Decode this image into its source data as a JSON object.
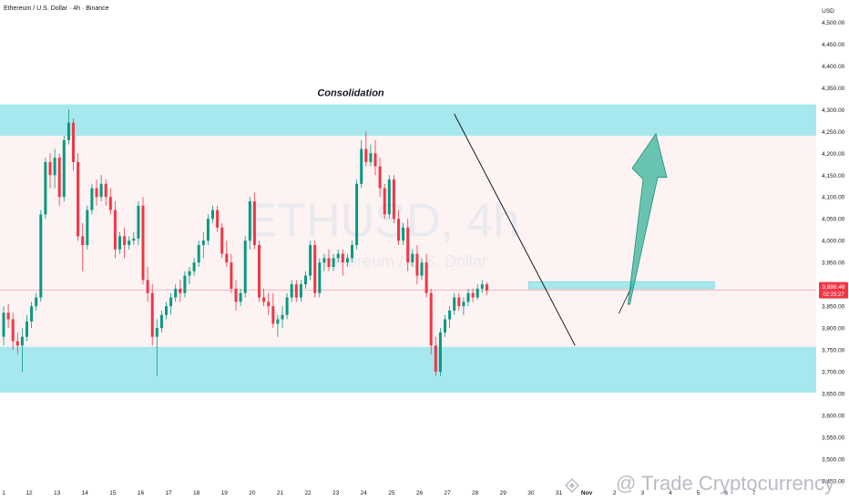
{
  "header": {
    "title": "Ethereum / U.S. Dollar · 4h · Binance"
  },
  "watermark": {
    "text": "@ Trade Cryptocurrency"
  },
  "colors": {
    "up": "#089981",
    "down": "#f23645",
    "zone": "#a7e8ee",
    "zone_edge": "#7fd6e0",
    "band": "#fdf3f3",
    "arrow": "#36b39a",
    "price_tag": "#f23645"
  },
  "chart_data": {
    "type": "candlestick",
    "symbol_watermark": "ETHUSD, 4h",
    "symbol_watermark_sub": "Ethereum / U.S. Dollar",
    "yunit": "USD",
    "ylim": [
      3450,
      4530
    ],
    "y_ticks": [
      4500,
      4450,
      4400,
      4350,
      4300,
      4250,
      4200,
      4150,
      4100,
      4050,
      4000,
      3950,
      3900,
      3850,
      3800,
      3750,
      3700,
      3650,
      3600,
      3550,
      3500,
      3450
    ],
    "y_tick_labels": [
      "4,500.00",
      "4,450.00",
      "4,400.00",
      "4,350.00",
      "4,300.00",
      "4,250.00",
      "4,200.00",
      "4,150.00",
      "4,100.00",
      "4,050.00",
      "4,000.00",
      "3,950.00",
      "3,900.00",
      "3,850.00",
      "3,800.00",
      "3,750.00",
      "3,700.00",
      "3,650.00",
      "3,600.00",
      "3,550.00",
      "3,500.00",
      "3,450.00"
    ],
    "current_price": {
      "label": "3,886.46",
      "countdown": "02:25:27",
      "value": 3886.46
    },
    "x_labels": [
      "1",
      "12",
      "13",
      "14",
      "15",
      "16",
      "17",
      "18",
      "19",
      "20",
      "21",
      "22",
      "23",
      "24",
      "25",
      "26",
      "27",
      "28",
      "29",
      "30",
      "31",
      "Nov",
      "2",
      "3",
      "4",
      "5",
      "6",
      "7"
    ],
    "x_label_index": [
      0,
      5.5,
      11.5,
      17.5,
      23.5,
      29.5,
      35.5,
      41.5,
      47.5,
      53.5,
      59.5,
      65.5,
      71.5,
      77.5,
      83.5,
      89.5,
      95.5,
      101.5,
      107.5,
      113.5,
      119.5,
      125.5,
      131.5,
      137.5,
      143.5,
      149.5,
      155.5,
      161.5
    ],
    "zones": [
      {
        "name": "resistance",
        "from": 4240,
        "to": 4312
      },
      {
        "name": "support",
        "from": 3652,
        "to": 3757
      },
      {
        "name": "breakout",
        "from": 3890,
        "to": 3906
      }
    ],
    "annotations": {
      "label": "Consolidation"
    },
    "trendline": {
      "from": [
        97,
        4290
      ],
      "to": [
        123,
        3760
      ]
    },
    "projection": {
      "from": [
        134,
        3850
      ],
      "to": [
        140,
        4245
      ]
    },
    "ohlc": [
      [
        3780,
        3850,
        3760,
        3835
      ],
      [
        3835,
        3855,
        3800,
        3820
      ],
      [
        3820,
        3835,
        3750,
        3770
      ],
      [
        3770,
        3790,
        3740,
        3760
      ],
      [
        3760,
        3800,
        3700,
        3780
      ],
      [
        3780,
        3830,
        3770,
        3815
      ],
      [
        3815,
        3860,
        3800,
        3850
      ],
      [
        3850,
        3880,
        3840,
        3870
      ],
      [
        3870,
        4070,
        3860,
        4060
      ],
      [
        4060,
        4190,
        4050,
        4180
      ],
      [
        4180,
        4200,
        4120,
        4150
      ],
      [
        4150,
        4210,
        4120,
        4190
      ],
      [
        4190,
        4200,
        4080,
        4100
      ],
      [
        4100,
        4240,
        4090,
        4230
      ],
      [
        4230,
        4300,
        4220,
        4270
      ],
      [
        4270,
        4280,
        4160,
        4180
      ],
      [
        4180,
        4200,
        4000,
        4010
      ],
      [
        4010,
        4040,
        3930,
        3990
      ],
      [
        3990,
        4080,
        3980,
        4070
      ],
      [
        4070,
        4130,
        4060,
        4120
      ],
      [
        4120,
        4140,
        4080,
        4100
      ],
      [
        4100,
        4150,
        4090,
        4130
      ],
      [
        4130,
        4140,
        4080,
        4100
      ],
      [
        4100,
        4120,
        4060,
        4070
      ],
      [
        4070,
        4090,
        3960,
        3980
      ],
      [
        3980,
        4020,
        3970,
        4010
      ],
      [
        4010,
        4030,
        3960,
        3990
      ],
      [
        3990,
        4010,
        3980,
        4000
      ],
      [
        4000,
        4020,
        3990,
        4005
      ],
      [
        4005,
        4090,
        3990,
        4080
      ],
      [
        4080,
        4100,
        3900,
        3910
      ],
      [
        3910,
        3940,
        3860,
        3880
      ],
      [
        3880,
        3900,
        3760,
        3780
      ],
      [
        3780,
        3820,
        3690,
        3800
      ],
      [
        3800,
        3840,
        3790,
        3830
      ],
      [
        3830,
        3860,
        3820,
        3850
      ],
      [
        3850,
        3880,
        3830,
        3870
      ],
      [
        3870,
        3900,
        3860,
        3890
      ],
      [
        3890,
        3910,
        3860,
        3880
      ],
      [
        3880,
        3930,
        3870,
        3920
      ],
      [
        3920,
        3940,
        3900,
        3930
      ],
      [
        3930,
        3960,
        3920,
        3950
      ],
      [
        3950,
        4000,
        3940,
        3990
      ],
      [
        3990,
        4020,
        3960,
        4000
      ],
      [
        4000,
        4060,
        3990,
        4050
      ],
      [
        4050,
        4080,
        4040,
        4070
      ],
      [
        4070,
        4080,
        4020,
        4030
      ],
      [
        4030,
        4040,
        3960,
        3970
      ],
      [
        3970,
        4000,
        3940,
        3950
      ],
      [
        3950,
        3970,
        3880,
        3890
      ],
      [
        3890,
        3910,
        3840,
        3860
      ],
      [
        3860,
        3890,
        3850,
        3880
      ],
      [
        3880,
        4010,
        3870,
        4000
      ],
      [
        4000,
        4100,
        3980,
        4090
      ],
      [
        4090,
        4110,
        3980,
        3990
      ],
      [
        3990,
        4000,
        3860,
        3870
      ],
      [
        3870,
        3890,
        3850,
        3860
      ],
      [
        3860,
        3880,
        3830,
        3850
      ],
      [
        3850,
        3880,
        3800,
        3810
      ],
      [
        3810,
        3830,
        3780,
        3820
      ],
      [
        3820,
        3850,
        3800,
        3830
      ],
      [
        3830,
        3880,
        3820,
        3870
      ],
      [
        3870,
        3910,
        3860,
        3900
      ],
      [
        3900,
        3910,
        3860,
        3870
      ],
      [
        3870,
        3910,
        3860,
        3900
      ],
      [
        3900,
        3930,
        3890,
        3920
      ],
      [
        3920,
        4000,
        3910,
        3990
      ],
      [
        3990,
        4000,
        3870,
        3880
      ],
      [
        3880,
        3960,
        3870,
        3950
      ],
      [
        3950,
        3970,
        3930,
        3960
      ],
      [
        3960,
        3980,
        3930,
        3940
      ],
      [
        3940,
        3970,
        3930,
        3960
      ],
      [
        3960,
        3980,
        3950,
        3970
      ],
      [
        3970,
        3980,
        3920,
        3950
      ],
      [
        3950,
        3970,
        3940,
        3960
      ],
      [
        3960,
        4000,
        3950,
        3990
      ],
      [
        3990,
        4140,
        3980,
        4130
      ],
      [
        4130,
        4230,
        4120,
        4210
      ],
      [
        4210,
        4250,
        4170,
        4180
      ],
      [
        4180,
        4220,
        4170,
        4200
      ],
      [
        4200,
        4230,
        4150,
        4170
      ],
      [
        4170,
        4190,
        4100,
        4120
      ],
      [
        4120,
        4130,
        4050,
        4060
      ],
      [
        4060,
        4150,
        4050,
        4140
      ],
      [
        4140,
        4150,
        4040,
        4050
      ],
      [
        4050,
        4070,
        3990,
        4000
      ],
      [
        4000,
        4040,
        3990,
        4030
      ],
      [
        4030,
        4050,
        3930,
        3950
      ],
      [
        3950,
        3980,
        3940,
        3970
      ],
      [
        3970,
        3990,
        3900,
        3920
      ],
      [
        3920,
        3960,
        3910,
        3950
      ],
      [
        3950,
        3970,
        3870,
        3880
      ],
      [
        3880,
        3890,
        3740,
        3760
      ],
      [
        3760,
        3780,
        3690,
        3700
      ],
      [
        3700,
        3800,
        3690,
        3790
      ],
      [
        3790,
        3830,
        3780,
        3820
      ],
      [
        3820,
        3850,
        3800,
        3840
      ],
      [
        3840,
        3880,
        3830,
        3870
      ],
      [
        3870,
        3880,
        3840,
        3850
      ],
      [
        3850,
        3870,
        3830,
        3860
      ],
      [
        3860,
        3890,
        3850,
        3880
      ],
      [
        3880,
        3890,
        3860,
        3870
      ],
      [
        3870,
        3900,
        3865,
        3890
      ],
      [
        3890,
        3910,
        3880,
        3900
      ],
      [
        3900,
        3905,
        3875,
        3886
      ]
    ]
  }
}
